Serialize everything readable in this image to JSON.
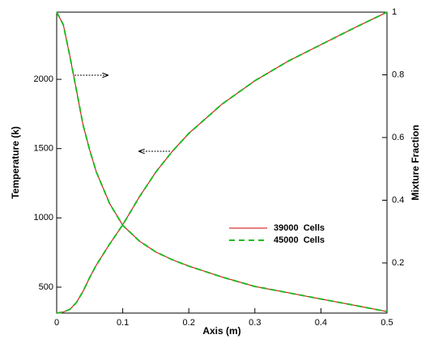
{
  "chart_data": {
    "type": "line",
    "x_label": "Axis (m)",
    "y_label": "Temperature (k)",
    "y2_label": "Mixture Fraction",
    "x": [
      0,
      0.01,
      0.02,
      0.03,
      0.04,
      0.05,
      0.06,
      0.08,
      0.1,
      0.125,
      0.15,
      0.175,
      0.2,
      0.25,
      0.3,
      0.35,
      0.4,
      0.45,
      0.5
    ],
    "series": [
      {
        "name": "39000  Cells",
        "color": "#cc0000",
        "dashed": false,
        "values": [
          313,
          320,
          340,
          390,
          470,
          570,
          660,
          810,
          950,
          1150,
          1330,
          1480,
          1610,
          1820,
          1990,
          2130,
          2250,
          2370,
          2485
        ],
        "values_y2": [
          1,
          0.96,
          0.86,
          0.75,
          0.64,
          0.56,
          0.49,
          0.39,
          0.32,
          0.27,
          0.235,
          0.21,
          0.19,
          0.155,
          0.125,
          0.105,
          0.085,
          0.065,
          0.045
        ]
      },
      {
        "name": "45000  Cells",
        "color": "#22bb22",
        "dashed": true,
        "values": [
          313,
          320,
          340,
          390,
          470,
          570,
          660,
          810,
          950,
          1150,
          1330,
          1480,
          1610,
          1820,
          1990,
          2130,
          2250,
          2370,
          2485
        ],
        "values_y2": [
          1,
          0.96,
          0.86,
          0.75,
          0.64,
          0.56,
          0.49,
          0.39,
          0.32,
          0.27,
          0.235,
          0.21,
          0.19,
          0.155,
          0.125,
          0.105,
          0.085,
          0.065,
          0.045
        ]
      }
    ],
    "xlim": [
      0,
      0.5
    ],
    "xticks": [
      0,
      0.1,
      0.2,
      0.3,
      0.4,
      0.5
    ],
    "ylim": [
      313,
      2485
    ],
    "yticks": [
      500,
      1000,
      1500,
      2000
    ],
    "y2lim": [
      0.04,
      1
    ],
    "y2ticks": [
      0.2,
      0.4,
      0.6,
      0.8,
      1
    ]
  }
}
